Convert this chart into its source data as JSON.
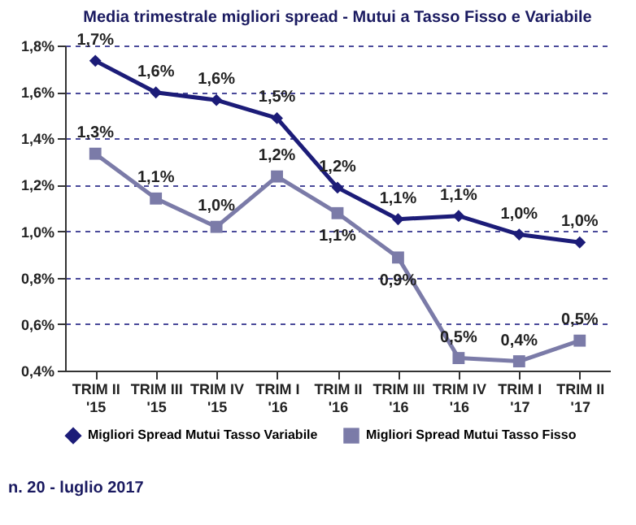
{
  "chart_data": {
    "type": "line",
    "title": "Media trimestrale migliori spread - Mutui a Tasso Fisso e Variabile",
    "categories": [
      "TRIM II\n'15",
      "TRIM III\n'15",
      "TRIM IV\n'15",
      "TRIM I\n'16",
      "TRIM II\n'16",
      "TRIM III\n'16",
      "TRIM IV\n'16",
      "TRIM I\n'17",
      "TRIM II\n'17"
    ],
    "series": [
      {
        "name": "Migliori  Spread Mutui Tasso Variabile",
        "color": "#1c1c78",
        "marker": "diamond",
        "values": [
          1.734,
          1.598,
          1.565,
          1.487,
          1.188,
          1.052,
          1.066,
          0.986,
          0.952
        ],
        "value_labels": [
          "1,7%",
          "1,6%",
          "1,6%",
          "1,5%",
          "1,2%",
          "1,1%",
          "1,1%",
          "1,0%",
          "1,0%"
        ]
      },
      {
        "name": "Migliori Spread Mutui Tasso Fisso",
        "color": "#7b7ba8",
        "marker": "square",
        "values": [
          1.334,
          1.141,
          1.019,
          1.236,
          1.078,
          0.887,
          0.454,
          0.44,
          0.529
        ],
        "value_labels": [
          "1,3%",
          "1,1%",
          "1,0%",
          "1,2%",
          "1,1%",
          "0,9%",
          "0,5%",
          "0,4%",
          "0,5%"
        ]
      }
    ],
    "ylim": [
      0.4,
      1.8
    ],
    "yticks": [
      {
        "value": 0.4,
        "label": "0,4%"
      },
      {
        "value": 0.6,
        "label": "0,6%"
      },
      {
        "value": 0.8,
        "label": "0,8%"
      },
      {
        "value": 1.0,
        "label": "1,0%"
      },
      {
        "value": 1.2,
        "label": "1,2%"
      },
      {
        "value": 1.4,
        "label": "1,4%"
      },
      {
        "value": 1.6,
        "label": "1,6%"
      },
      {
        "value": 1.8,
        "label": "1,8%"
      }
    ],
    "grid": "y",
    "legend": "bottom",
    "line_style": "solid",
    "annotations": [
      "n. 20 - luglio 2017"
    ]
  }
}
